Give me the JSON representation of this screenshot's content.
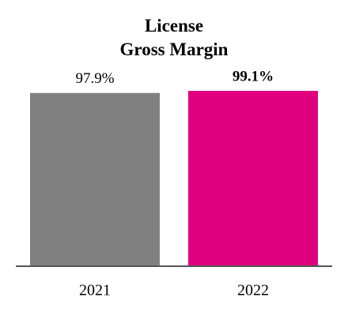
{
  "chart_data": {
    "type": "bar",
    "title": "License\nGross Margin",
    "categories": [
      "2021",
      "2022"
    ],
    "values": [
      97.9,
      99.1
    ],
    "value_labels": [
      "97.9%",
      "99.1%"
    ],
    "colors": [
      "#808080",
      "#e0007f"
    ],
    "bold_labels": [
      false,
      true
    ],
    "ylim": [
      0,
      100
    ]
  }
}
